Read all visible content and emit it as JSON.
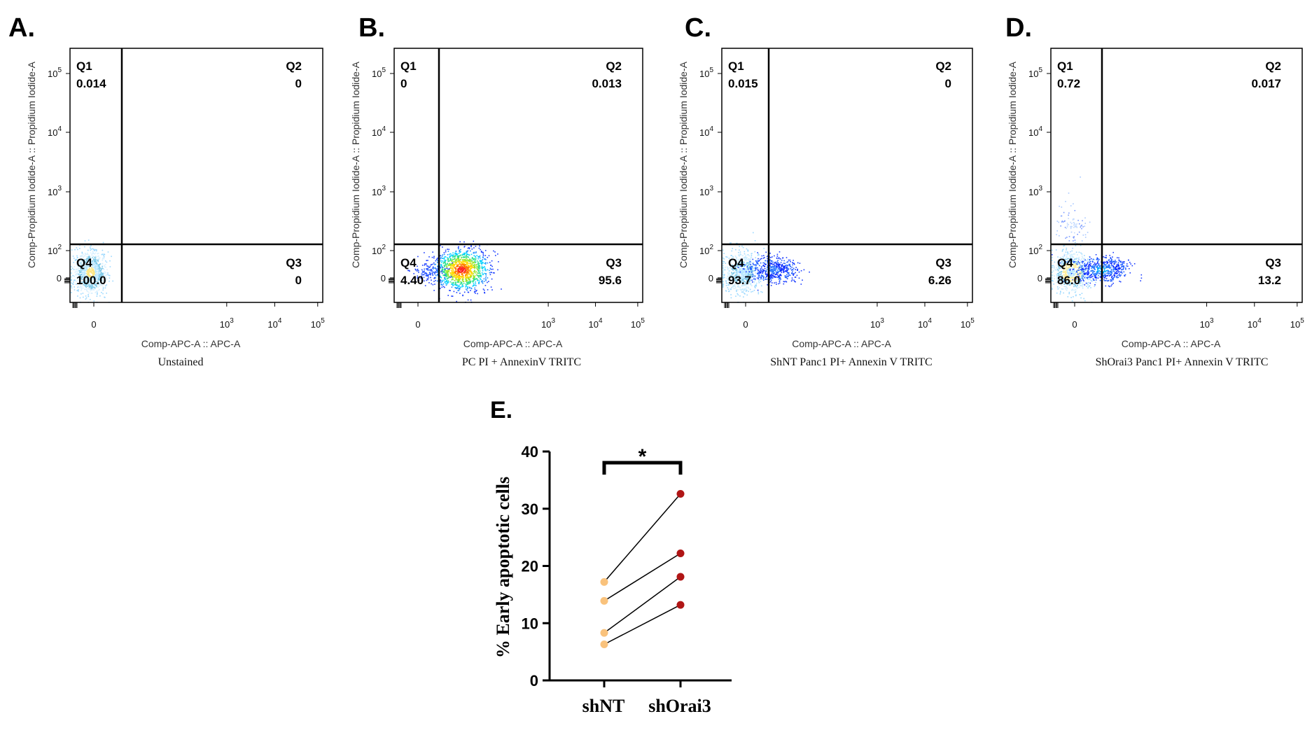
{
  "flow_panels": [
    {
      "letter": "A.",
      "ylabel": "Comp-Propidium Iodide-A :: Propidium Iodide-A",
      "xlabel": "Comp-APC-A :: APC-A",
      "caption": "Unstained",
      "quadrants": {
        "Q1": "0.014",
        "Q2": "0",
        "Q3": "0",
        "Q4": "100.0"
      },
      "cluster": "unstained"
    },
    {
      "letter": "B.",
      "ylabel": "Comp-Propidium Iodide-A :: Propidium Iodide-A",
      "xlabel": "Comp-APC-A :: APC-A",
      "caption": "PC PI + AnnexinV TRITC",
      "quadrants": {
        "Q1": "0",
        "Q2": "0.013",
        "Q3": "95.6",
        "Q4": "4.40"
      },
      "cluster": "positive"
    },
    {
      "letter": "C.",
      "ylabel": "Comp-Propidium Iodide-A :: Propidium Iodide-A",
      "xlabel": "Comp-APC-A :: APC-A",
      "caption": "ShNT Panc1 PI+ Annexin V TRITC",
      "quadrants": {
        "Q1": "0.015",
        "Q2": "0",
        "Q3": "6.26",
        "Q4": "93.7"
      },
      "cluster": "shnt"
    },
    {
      "letter": "D.",
      "ylabel": "Comp-Propidium Iodide-A :: Propidium Iodide-A",
      "xlabel": "Comp-APC-A :: APC-A",
      "caption": "ShOrai3 Panc1 PI+ Annexin V TRITC",
      "quadrants": {
        "Q1": "0.72",
        "Q2": "0.017",
        "Q3": "13.2",
        "Q4": "86.0"
      },
      "cluster": "shorai3"
    }
  ],
  "axis_ticks": {
    "y": [
      {
        "base": "10",
        "exp": "5"
      },
      {
        "base": "10",
        "exp": "4"
      },
      {
        "base": "10",
        "exp": "3"
      },
      {
        "base": "10",
        "exp": "2"
      },
      {
        "base": "0",
        "exp": ""
      }
    ],
    "x": [
      {
        "base": "0",
        "exp": ""
      },
      {
        "base": "10",
        "exp": "3"
      },
      {
        "base": "10",
        "exp": "4"
      },
      {
        "base": "10",
        "exp": "5"
      }
    ]
  },
  "chart_data": {
    "type": "scatter",
    "letter": "E.",
    "title": "",
    "xlabel": "",
    "ylabel": "% Early apoptotic  cells",
    "categories": [
      "shNT",
      "shOrai3"
    ],
    "ylim": [
      0,
      40
    ],
    "yticks": [
      0,
      10,
      20,
      30,
      40
    ],
    "pairs": [
      {
        "shNT": 17.2,
        "shOrai3": 32.6
      },
      {
        "shNT": 13.9,
        "shOrai3": 22.2
      },
      {
        "shNT": 8.3,
        "shOrai3": 18.1
      },
      {
        "shNT": 6.3,
        "shOrai3": 13.2
      }
    ],
    "significance": "*",
    "colors": {
      "shNT": "#f9c27c",
      "shOrai3": "#b01515",
      "line": "#000000"
    }
  }
}
